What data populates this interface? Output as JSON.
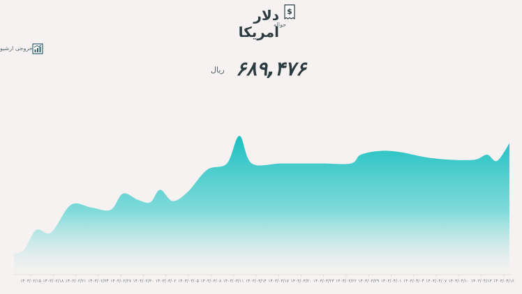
{
  "header": {
    "title": "دلار امریکا",
    "subtitle": "حواله",
    "icon": "receipt-dollar-icon"
  },
  "export": {
    "label": "خروجی ارشیو",
    "icon": "chart-export-icon"
  },
  "price": {
    "value": "۶۸۹,۴۷۶",
    "unit": "ریال"
  },
  "colors": {
    "accent": "#1bbfc0",
    "background": "#f6f2f1",
    "text": "#2b3b3f"
  },
  "chart_data": {
    "type": "area",
    "x": [
      "۱۴۰۳/۰۲/۱۵",
      "۱۴۰۳/۰۲/۱۸",
      "۱۴۰۳/۰۲/۲۱",
      "۱۴۰۳/۰۲/۲۴",
      "۱۴۰۳/۰۲/۲۷",
      "۱۴۰۳/۰۲/۳۰",
      "۱۴۰۳/۰۳/۰۲",
      "۱۴۰۳/۰۳/۰۵",
      "۱۴۰۳/۰۳/۰۸",
      "۱۴۰۳/۰۳/۱۱",
      "۱۴۰۳/۰۳/۱۴",
      "۱۴۰۳/۰۳/۱۷",
      "۱۴۰۳/۰۳/۲۰",
      "۱۴۰۳/۰۳/۲۳",
      "۱۴۰۳/۰۳/۲۶",
      "۱۴۰۳/۰۳/۲۹",
      "۱۴۰۳/۰۴/۰۱",
      "۱۴۰۳/۰۴/۰۴",
      "۱۴۰۳/۰۴/۰۷",
      "۱۴۰۳/۰۴/۱۰",
      "۱۴۰۳/۰۴/۱۳",
      "۱۴۰۳/۰۴/۱۶"
    ],
    "points": [
      {
        "t": 0.0,
        "v": 0.01
      },
      {
        "t": 0.02,
        "v": 0.04
      },
      {
        "t": 0.045,
        "v": 0.2
      },
      {
        "t": 0.075,
        "v": 0.18
      },
      {
        "t": 0.115,
        "v": 0.4
      },
      {
        "t": 0.155,
        "v": 0.38
      },
      {
        "t": 0.195,
        "v": 0.36
      },
      {
        "t": 0.22,
        "v": 0.49
      },
      {
        "t": 0.25,
        "v": 0.44
      },
      {
        "t": 0.275,
        "v": 0.42
      },
      {
        "t": 0.295,
        "v": 0.52
      },
      {
        "t": 0.32,
        "v": 0.43
      },
      {
        "t": 0.35,
        "v": 0.5
      },
      {
        "t": 0.39,
        "v": 0.68
      },
      {
        "t": 0.43,
        "v": 0.73
      },
      {
        "t": 0.455,
        "v": 0.95
      },
      {
        "t": 0.48,
        "v": 0.73
      },
      {
        "t": 0.54,
        "v": 0.73
      },
      {
        "t": 0.62,
        "v": 0.73
      },
      {
        "t": 0.68,
        "v": 0.73
      },
      {
        "t": 0.7,
        "v": 0.8
      },
      {
        "t": 0.74,
        "v": 0.83
      },
      {
        "t": 0.78,
        "v": 0.82
      },
      {
        "t": 0.83,
        "v": 0.78
      },
      {
        "t": 0.88,
        "v": 0.76
      },
      {
        "t": 0.93,
        "v": 0.76
      },
      {
        "t": 0.955,
        "v": 0.8
      },
      {
        "t": 0.975,
        "v": 0.75
      },
      {
        "t": 1.0,
        "v": 0.89
      }
    ],
    "grid": false,
    "legend": "none"
  }
}
